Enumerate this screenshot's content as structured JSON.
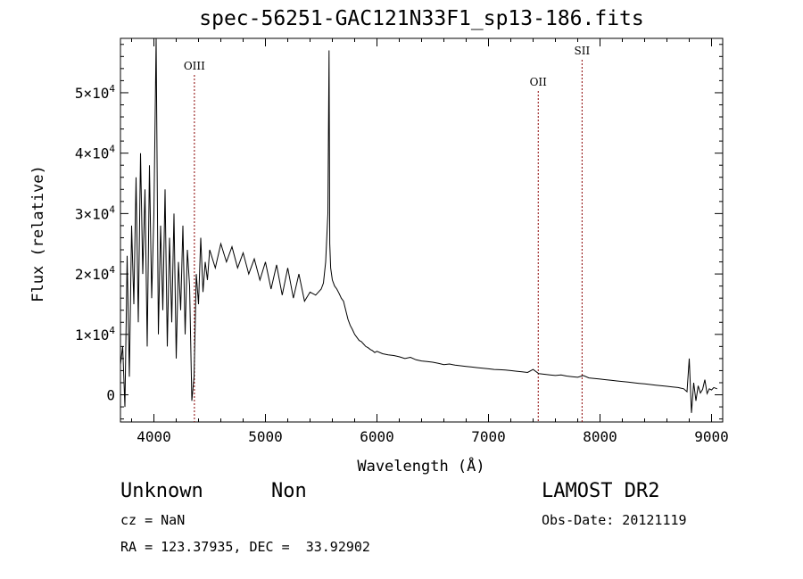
{
  "page": {
    "title": "spec-56251-GAC121N33F1_sp13-186.fits",
    "class_label": "Unknown",
    "subclass_label": "Non",
    "survey_label": "LAMOST DR2",
    "redshift_text": "cz = NaN",
    "coords_text": "RA = 123.37935, DEC =  33.92902",
    "obsdate_text": "Obs-Date: 20121119"
  },
  "chart_data": {
    "type": "line",
    "title": "spec-56251-GAC121N33F1_sp13-186.fits",
    "xlabel": "Wavelength (Å)",
    "ylabel": "Flux (relative)",
    "xlim": [
      3700,
      9100
    ],
    "ylim": [
      -4500,
      59000
    ],
    "x_ticks": [
      4000,
      5000,
      6000,
      7000,
      8000,
      9000
    ],
    "x_tick_labels": [
      "4000",
      "5000",
      "6000",
      "7000",
      "8000",
      "9000"
    ],
    "y_ticks": [
      0,
      10000,
      20000,
      30000,
      40000,
      50000
    ],
    "y_tick_labels": [
      {
        "mantissa": "0",
        "exponent": ""
      },
      {
        "mantissa": "1×10",
        "exponent": "4"
      },
      {
        "mantissa": "2×10",
        "exponent": "4"
      },
      {
        "mantissa": "3×10",
        "exponent": "4"
      },
      {
        "mantissa": "4×10",
        "exponent": "4"
      },
      {
        "mantissa": "5×10",
        "exponent": "4"
      }
    ],
    "grid": false,
    "line_color": "#000000",
    "marker_color": "#8b0000",
    "lines": [
      {
        "name": "OIII",
        "wavelength": 4363
      },
      {
        "name": "OII",
        "wavelength": 7446
      },
      {
        "name": "SII",
        "wavelength": 7839
      }
    ],
    "series": [
      {
        "x": [
          3700,
          3720,
          3740,
          3760,
          3780,
          3800,
          3820,
          3840,
          3860,
          3880,
          3900,
          3920,
          3940,
          3960,
          3980,
          4000,
          4020,
          4040,
          4060,
          4080,
          4100,
          4120,
          4140,
          4160,
          4180,
          4200,
          4220,
          4240,
          4260,
          4280,
          4300,
          4320,
          4340,
          4360,
          4380,
          4400,
          4420,
          4440,
          4460,
          4480,
          4500,
          4550,
          4600,
          4650,
          4700,
          4750,
          4800,
          4850,
          4900,
          4950,
          5000,
          5050,
          5100,
          5150,
          5200,
          5250,
          5300,
          5350,
          5400,
          5450,
          5500,
          5520,
          5540,
          5560,
          5570,
          5577,
          5585,
          5600,
          5620,
          5640,
          5660,
          5680,
          5700,
          5720,
          5740,
          5760,
          5780,
          5800,
          5820,
          5840,
          5860,
          5880,
          5900,
          5920,
          5940,
          5960,
          5980,
          6000,
          6050,
          6100,
          6150,
          6200,
          6250,
          6300,
          6350,
          6400,
          6450,
          6500,
          6550,
          6600,
          6650,
          6700,
          6750,
          6800,
          6850,
          6900,
          6950,
          7000,
          7050,
          7100,
          7150,
          7200,
          7250,
          7300,
          7350,
          7400,
          7450,
          7500,
          7550,
          7600,
          7650,
          7700,
          7750,
          7800,
          7850,
          7900,
          7950,
          8000,
          8050,
          8100,
          8150,
          8200,
          8250,
          8300,
          8350,
          8400,
          8450,
          8500,
          8550,
          8600,
          8650,
          8700,
          8750,
          8780,
          8800,
          8820,
          8840,
          8860,
          8880,
          8900,
          8920,
          8940,
          8960,
          8980,
          9000,
          9020,
          9050
        ],
        "y": [
          5000,
          8000,
          -2000,
          23000,
          3000,
          28000,
          15000,
          36000,
          12000,
          40000,
          20000,
          34000,
          8000,
          38000,
          16000,
          30000,
          59000,
          10000,
          28000,
          14000,
          34000,
          8000,
          26000,
          12000,
          30000,
          6000,
          22000,
          14000,
          28000,
          10000,
          24000,
          18000,
          -1000,
          3000,
          20000,
          15000,
          26000,
          17000,
          22000,
          19000,
          24000,
          21000,
          25000,
          22000,
          24500,
          21000,
          23500,
          20000,
          22500,
          19000,
          22000,
          17500,
          21500,
          16500,
          21000,
          16000,
          20000,
          15500,
          17000,
          16500,
          17500,
          18500,
          22000,
          30000,
          57000,
          25000,
          21000,
          19000,
          18000,
          17500,
          16800,
          16000,
          15500,
          14000,
          12500,
          11500,
          10800,
          10000,
          9500,
          9000,
          8800,
          8400,
          8000,
          7800,
          7500,
          7300,
          7000,
          7200,
          6800,
          6600,
          6500,
          6300,
          6000,
          6200,
          5800,
          5600,
          5500,
          5400,
          5200,
          5000,
          5100,
          4900,
          4800,
          4700,
          4600,
          4500,
          4400,
          4300,
          4200,
          4150,
          4100,
          4000,
          3900,
          3800,
          3700,
          4200,
          3500,
          3400,
          3300,
          3200,
          3300,
          3100,
          3000,
          2900,
          3200,
          2800,
          2700,
          2600,
          2500,
          2400,
          2300,
          2200,
          2100,
          2000,
          1900,
          1800,
          1700,
          1600,
          1500,
          1400,
          1300,
          1200,
          1000,
          500,
          6000,
          -3000,
          2000,
          -1000,
          1500,
          300,
          900,
          2500,
          200,
          1000,
          800,
          1200,
          1000
        ]
      }
    ]
  }
}
